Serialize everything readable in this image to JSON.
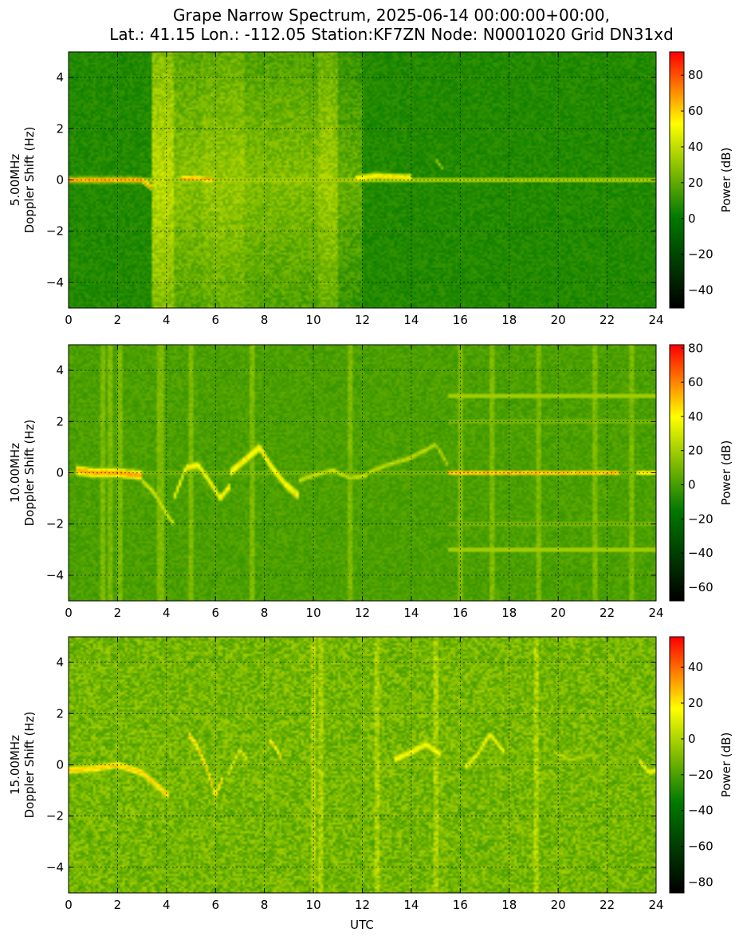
{
  "chart_data": {
    "type": "heatmap",
    "title_lines": [
      "Grape Narrow Spectrum, 2025-06-14 00:00:00+00:00,",
      "Lat.: 41.15 Lon.: -112.05 Station:KF7ZN Node: N0001020 Grid DN31xd"
    ],
    "xlabel": "UTC",
    "xlim": [
      0,
      24
    ],
    "x_ticks": [
      "0",
      "2",
      "4",
      "6",
      "8",
      "10",
      "12",
      "14",
      "16",
      "18",
      "20",
      "22",
      "24"
    ],
    "ylim": [
      -5,
      5
    ],
    "y_ticks": [
      4,
      2,
      0,
      -2,
      -4
    ],
    "y_tick_labels": [
      "4",
      "2",
      "0",
      "−2",
      "−4"
    ],
    "grid": true,
    "colormap": [
      "#000000",
      "#007800",
      "#ffff00",
      "#ff0000"
    ],
    "colorbar_label": "Power (dB)",
    "panels": [
      {
        "ylabel_line1": "5.00MHz",
        "ylabel_line2": "Doppler Shift (Hz)",
        "colorbar_range": [
          -50,
          93
        ],
        "colorbar_ticks": [
          80,
          60,
          40,
          20,
          0,
          -20,
          -40
        ],
        "colorbar_tick_labels": [
          "80",
          "60",
          "40",
          "20",
          "0",
          "−20",
          "−40"
        ],
        "background_level": 0.4,
        "noise": 0.03,
        "carrier": {
          "doppler": 0,
          "level": 0.62,
          "width": 0.12
        },
        "traces": [
          {
            "t": [
              0.0,
              1.0,
              2.0,
              3.0,
              3.4
            ],
            "d": [
              0.0,
              0.0,
              0.0,
              0.0,
              -0.3
            ],
            "level": 0.85,
            "width": 0.12
          },
          {
            "t": [
              4.6,
              5.2,
              5.9
            ],
            "d": [
              0.05,
              0.08,
              0.0
            ],
            "level": 0.82,
            "width": 0.12
          },
          {
            "t": [
              11.7,
              12.5,
              13.3,
              14.0
            ],
            "d": [
              0.05,
              0.15,
              0.12,
              0.1
            ],
            "level": 0.74,
            "width": 0.16
          },
          {
            "t": [
              15.0,
              15.3
            ],
            "d": [
              0.8,
              0.4
            ],
            "level": 0.6,
            "width": 0.1
          }
        ],
        "bursts": [
          {
            "t0": 3.4,
            "t1": 4.3,
            "level": 0.62
          },
          {
            "t0": 4.3,
            "t1": 5.5,
            "level": 0.55
          },
          {
            "t0": 5.5,
            "t1": 7.2,
            "level": 0.57
          },
          {
            "t0": 7.2,
            "t1": 10.2,
            "level": 0.54
          },
          {
            "t0": 10.2,
            "t1": 11.0,
            "level": 0.58
          },
          {
            "t0": 11.0,
            "t1": 12.0,
            "level": 0.5
          }
        ],
        "stripes": [
          3.7,
          4.0,
          4.9,
          6.7,
          7.0,
          7.5,
          9.3,
          10.4,
          10.6
        ]
      },
      {
        "ylabel_line1": "10.00MHz",
        "ylabel_line2": "Doppler Shift (Hz)",
        "colorbar_range": [
          -68,
          82
        ],
        "colorbar_ticks": [
          80,
          60,
          40,
          20,
          0,
          -20,
          -40,
          -60
        ],
        "colorbar_tick_labels": [
          "80",
          "60",
          "40",
          "20",
          "0",
          "−20",
          "−40",
          "−60"
        ],
        "background_level": 0.46,
        "noise": 0.03,
        "carrier": {
          "doppler": 0,
          "level": 0.56,
          "width": 0.1
        },
        "traces": [
          {
            "t": [
              0.3,
              1.0,
              2.0,
              3.0
            ],
            "d": [
              0.1,
              0.0,
              0.0,
              -0.1
            ],
            "level": 0.82,
            "width": 0.22
          },
          {
            "t": [
              3.0,
              3.5,
              4.0,
              4.3
            ],
            "d": [
              -0.3,
              -0.8,
              -1.6,
              -2.0
            ],
            "level": 0.66,
            "width": 0.18
          },
          {
            "t": [
              4.3,
              4.8,
              5.3,
              5.8,
              6.2,
              6.6
            ],
            "d": [
              -1.0,
              0.2,
              0.3,
              -0.4,
              -1.0,
              -0.5
            ],
            "level": 0.72,
            "width": 0.2
          },
          {
            "t": [
              6.6,
              7.2,
              7.8,
              8.3,
              8.9,
              9.4
            ],
            "d": [
              0.0,
              0.5,
              1.0,
              0.2,
              -0.5,
              -0.9
            ],
            "level": 0.74,
            "width": 0.22
          },
          {
            "t": [
              9.4,
              10.0,
              10.8,
              11.5,
              12.2
            ],
            "d": [
              -0.3,
              -0.1,
              0.1,
              -0.2,
              -0.1
            ],
            "level": 0.63,
            "width": 0.16
          },
          {
            "t": [
              12.2,
              13.0,
              14.0,
              15.0,
              15.5
            ],
            "d": [
              0.0,
              0.3,
              0.6,
              1.1,
              0.3
            ],
            "level": 0.62,
            "width": 0.16
          },
          {
            "t": [
              15.5,
              17.0,
              19.0,
              21.0,
              22.5
            ],
            "d": [
              0.0,
              0.0,
              0.0,
              0.0,
              0.0
            ],
            "level": 0.85,
            "width": 0.1
          },
          {
            "t": [
              23.2,
              24.0
            ],
            "d": [
              0.0,
              0.0
            ],
            "level": 0.8,
            "width": 0.1
          }
        ],
        "hlines": [
          {
            "d": 3.0,
            "t0": 15.5,
            "t1": 24.0,
            "level": 0.58
          },
          {
            "d": -3.0,
            "t0": 15.5,
            "t1": 24.0,
            "level": 0.58
          },
          {
            "d": 2.0,
            "t0": 15.5,
            "t1": 24.0,
            "level": 0.52
          },
          {
            "d": -2.0,
            "t0": 15.5,
            "t1": 24.0,
            "level": 0.52
          }
        ],
        "bursts": [],
        "stripes": [
          1.4,
          1.7,
          2.1,
          3.7,
          3.8,
          5.0,
          7.5,
          11.5,
          16.0,
          17.3,
          19.2,
          21.5,
          23.0
        ]
      },
      {
        "ylabel_line1": "15.00MHz",
        "ylabel_line2": "Doppler Shift (Hz)",
        "colorbar_range": [
          -86,
          57
        ],
        "colorbar_ticks": [
          40,
          20,
          0,
          -20,
          -40,
          -60,
          -80
        ],
        "colorbar_tick_labels": [
          "40",
          "20",
          "0",
          "−20",
          "−40",
          "−60",
          "−80"
        ],
        "background_level": 0.52,
        "noise": 0.07,
        "carrier": {
          "doppler": 0,
          "level": 0.58,
          "width": 0.08
        },
        "traces": [
          {
            "t": [
              0.0,
              1.0,
              2.0,
              3.0,
              3.6,
              4.1
            ],
            "d": [
              -0.2,
              -0.15,
              0.0,
              -0.3,
              -0.8,
              -1.2
            ],
            "level": 0.78,
            "width": 0.18
          },
          {
            "t": [
              4.9,
              5.2,
              5.6,
              6.0,
              6.3
            ],
            "d": [
              1.2,
              0.8,
              0.0,
              -1.2,
              -0.5
            ],
            "level": 0.78,
            "width": 0.18
          },
          {
            "t": [
              6.5,
              7.0,
              7.3
            ],
            "d": [
              -0.4,
              0.6,
              0.2
            ],
            "level": 0.68,
            "width": 0.16
          },
          {
            "t": [
              8.2,
              8.5,
              8.7
            ],
            "d": [
              1.0,
              0.6,
              0.2
            ],
            "level": 0.76,
            "width": 0.14
          },
          {
            "t": [
              13.3,
              14.0,
              14.6,
              15.2
            ],
            "d": [
              0.2,
              0.5,
              0.8,
              0.4
            ],
            "level": 0.72,
            "width": 0.2
          },
          {
            "t": [
              16.2,
              16.7,
              17.2,
              17.8
            ],
            "d": [
              -0.1,
              0.4,
              1.2,
              0.5
            ],
            "level": 0.7,
            "width": 0.18
          },
          {
            "t": [
              19.8,
              20.5,
              21.4
            ],
            "d": [
              0.5,
              0.2,
              0.4
            ],
            "level": 0.62,
            "width": 0.14
          },
          {
            "t": [
              23.3,
              23.7,
              24.0
            ],
            "d": [
              0.2,
              -0.3,
              -0.2
            ],
            "level": 0.72,
            "width": 0.16
          }
        ],
        "bursts": [],
        "stripes": [
          10.0,
          10.3,
          12.6,
          15.0,
          19.1
        ]
      }
    ]
  }
}
